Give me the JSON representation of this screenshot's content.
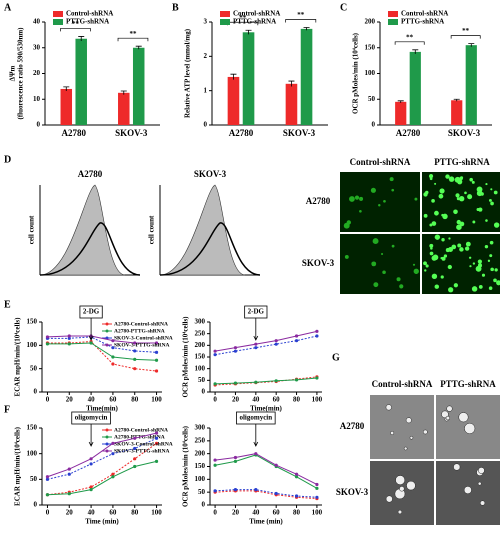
{
  "panels": {
    "letters": [
      "A",
      "B",
      "C",
      "D",
      "E",
      "F",
      "G"
    ],
    "histograms": {
      "titles": [
        "A2780",
        "SKOV-3"
      ],
      "ylabel": "cell count"
    },
    "fluorescence": {
      "columns": [
        "Control-shRNA",
        "PTTG-shRNA"
      ],
      "rows": [
        "A2780",
        "SKOV-3"
      ]
    },
    "em": {
      "columns": [
        "Control-shRNA",
        "PTTG-shRNA"
      ],
      "rows": [
        "A2780",
        "SKOV-3"
      ]
    }
  },
  "chart_data": [
    {
      "type": "bar",
      "ylabel": [
        "ΔΨm",
        "(fluorescence ratio 590/530nm)"
      ],
      "categories": [
        "A2780",
        "SKOV-3"
      ],
      "ylim": [
        0,
        40
      ],
      "yticks": [
        0,
        10,
        20,
        30,
        40
      ],
      "annotations": [
        "**",
        "**"
      ],
      "series": [
        {
          "name": "Control-shRNA",
          "color": "#ee2a2a",
          "values": [
            14,
            12.5
          ],
          "errors": [
            0.8,
            0.7
          ]
        },
        {
          "name": "PTTG-shRNA",
          "color": "#1f9a4a",
          "values": [
            33.5,
            30
          ],
          "errors": [
            0.9,
            0.6
          ]
        }
      ]
    },
    {
      "type": "bar",
      "ylabel": [
        "Relative ATP level (mmol/mg)"
      ],
      "categories": [
        "A2780",
        "SKOV-3"
      ],
      "ylim": [
        0,
        3
      ],
      "yticks": [
        0,
        1,
        2,
        3
      ],
      "annotations": [
        "**",
        "**"
      ],
      "series": [
        {
          "name": "Control-shRNA",
          "color": "#ee2a2a",
          "values": [
            1.4,
            1.2
          ],
          "errors": [
            0.08,
            0.08
          ]
        },
        {
          "name": "PTTG-shRNA",
          "color": "#1f9a4a",
          "values": [
            2.7,
            2.8
          ],
          "errors": [
            0.06,
            0.04
          ]
        }
      ]
    },
    {
      "type": "bar",
      "ylabel": [
        "OCR pMoles/min (10⁴cells)"
      ],
      "categories": [
        "A2780",
        "SKOV-3"
      ],
      "ylim": [
        0,
        200
      ],
      "yticks": [
        0,
        50,
        100,
        150,
        200
      ],
      "annotations": [
        "**",
        "**"
      ],
      "series": [
        {
          "name": "Control-shRNA",
          "color": "#ee2a2a",
          "values": [
            45,
            48
          ],
          "errors": [
            2,
            2
          ]
        },
        {
          "name": "PTTG-shRNA",
          "color": "#1f9a4a",
          "values": [
            142,
            155
          ],
          "errors": [
            4,
            3
          ]
        }
      ]
    },
    {
      "type": "line",
      "ylabel": [
        "ECAR mpH/min/(10⁴cells)"
      ],
      "xlabel": "Time(min)",
      "x": [
        0,
        20,
        40,
        60,
        80,
        100
      ],
      "xlim": [
        -5,
        105
      ],
      "xticks": [
        0,
        20,
        40,
        60,
        80,
        100
      ],
      "ylim": [
        0,
        150
      ],
      "yticks": [
        0,
        50,
        100,
        150
      ],
      "annotation": {
        "text": "2-DG",
        "x": 40
      },
      "series": [
        {
          "name": "A2780-Control-shRNA",
          "color": "#ee2a2a",
          "values": [
            105,
            105,
            108,
            60,
            50,
            45
          ]
        },
        {
          "name": "A2780-PTTG-shRNA",
          "color": "#1f9a4a",
          "values": [
            103,
            103,
            105,
            75,
            70,
            68
          ]
        },
        {
          "name": "SKOV-3-Control-shRNA",
          "color": "#2a3fd0",
          "values": [
            115,
            115,
            118,
            95,
            88,
            85
          ]
        },
        {
          "name": "SKOV-3-PTTG-shRNA",
          "color": "#8a2aa0",
          "values": [
            118,
            120,
            120,
            110,
            105,
            105
          ]
        }
      ]
    },
    {
      "type": "line",
      "ylabel": [
        "OCR pMoles/min (10⁴cells)"
      ],
      "xlabel": "Time(min)",
      "x": [
        0,
        20,
        40,
        60,
        80,
        100
      ],
      "xlim": [
        -5,
        105
      ],
      "xticks": [
        0,
        20,
        40,
        60,
        80,
        100
      ],
      "ylim": [
        0,
        300
      ],
      "yticks": [
        0,
        50,
        100,
        150,
        200,
        250,
        300
      ],
      "annotation": {
        "text": "2-DG",
        "x": 40
      },
      "series": [
        {
          "color": "#ee2a2a",
          "values": [
            30,
            35,
            40,
            45,
            55,
            65
          ]
        },
        {
          "color": "#1f9a4a",
          "values": [
            35,
            38,
            42,
            48,
            52,
            60
          ]
        },
        {
          "color": "#2a3fd0",
          "values": [
            160,
            175,
            190,
            205,
            220,
            240
          ]
        },
        {
          "color": "#8a2aa0",
          "values": [
            175,
            190,
            205,
            220,
            240,
            260
          ]
        }
      ]
    },
    {
      "type": "line",
      "ylabel": [
        "ECAR mpH/min/(10⁴cells)"
      ],
      "xlabel": "Time (min)",
      "x": [
        0,
        20,
        40,
        60,
        80,
        100
      ],
      "xlim": [
        -5,
        105
      ],
      "xticks": [
        0,
        20,
        40,
        60,
        80,
        100
      ],
      "ylim": [
        0,
        150
      ],
      "yticks": [
        0,
        50,
        100,
        150
      ],
      "annotation": {
        "text": "oligomycin",
        "x": 40
      },
      "series": [
        {
          "name": "A2780-Control-shRNA",
          "color": "#ee2a2a",
          "values": [
            20,
            25,
            35,
            60,
            90,
            120
          ]
        },
        {
          "name": "A2780-PTTG-shRNA",
          "color": "#1f9a4a",
          "values": [
            20,
            22,
            30,
            55,
            75,
            85
          ]
        },
        {
          "name": "SKOV-3-Control-shRNA",
          "color": "#2a3fd0",
          "values": [
            50,
            60,
            80,
            100,
            110,
            130
          ]
        },
        {
          "name": "SKOV-3-PTTG-shRNA",
          "color": "#8a2aa0",
          "values": [
            55,
            70,
            90,
            120,
            130,
            140
          ]
        }
      ]
    },
    {
      "type": "line",
      "ylabel": [
        "OCR pMoles/min (10⁴cells)"
      ],
      "xlabel": "Time (min)",
      "x": [
        0,
        20,
        40,
        60,
        80,
        100
      ],
      "xlim": [
        -5,
        105
      ],
      "xticks": [
        0,
        20,
        40,
        60,
        80,
        100
      ],
      "ylim": [
        0,
        300
      ],
      "yticks": [
        0,
        50,
        100,
        150,
        200,
        250,
        300
      ],
      "annotation": {
        "text": "oligomycin",
        "x": 40
      },
      "series": [
        {
          "color": "#ee2a2a",
          "values": [
            50,
            55,
            55,
            40,
            30,
            25
          ]
        },
        {
          "color": "#1f9a4a",
          "values": [
            155,
            170,
            195,
            150,
            110,
            65
          ]
        },
        {
          "color": "#2a3fd0",
          "values": [
            55,
            60,
            60,
            45,
            35,
            30
          ]
        },
        {
          "color": "#8a2aa0",
          "values": [
            175,
            185,
            200,
            155,
            120,
            80
          ]
        }
      ]
    }
  ]
}
